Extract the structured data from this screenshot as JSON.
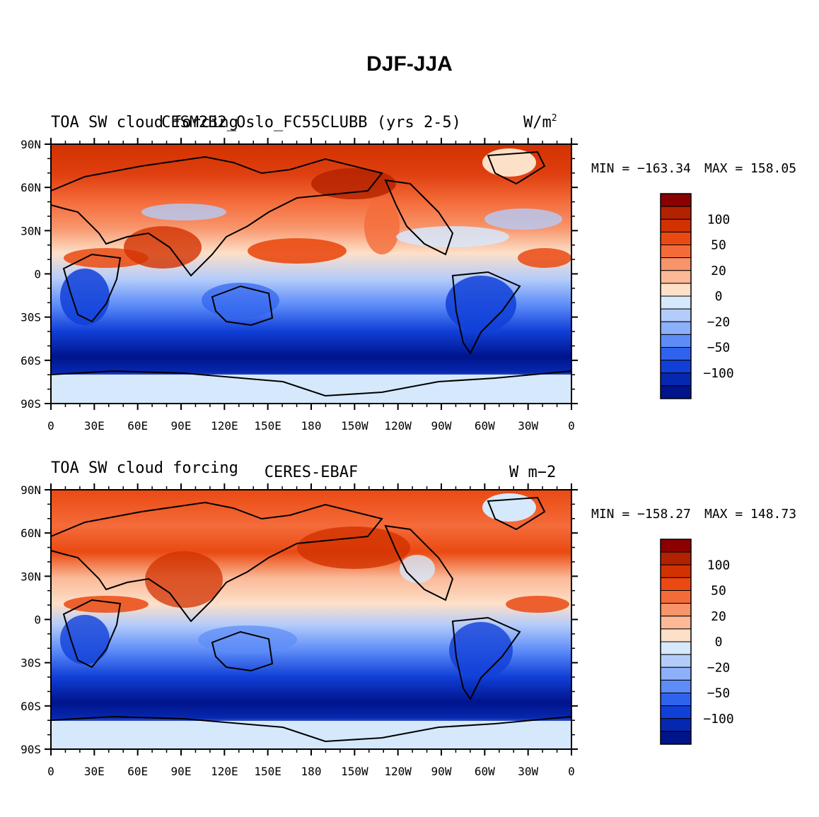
{
  "figure": {
    "title": "DJF-JJA"
  },
  "panels": [
    {
      "left_title": "TOA SW cloud forcing",
      "center_title": "CESM2B2_Oslo_FC55CLUBB (yrs 2-5)",
      "right_title": "W/m",
      "right_title_sup": "2",
      "min_label": "MIN = −163.34",
      "max_label": "MAX = 158.05"
    },
    {
      "left_title": "TOA SW cloud forcing",
      "center_title": "CERES-EBAF",
      "right_title": "W m−2",
      "right_title_sup": "",
      "min_label": "MIN = −158.27",
      "max_label": "MAX = 148.73"
    }
  ],
  "axes": {
    "y_ticks": [
      "90N",
      "60N",
      "30N",
      "0",
      "30S",
      "60S",
      "90S"
    ],
    "x_ticks": [
      "0",
      "30E",
      "60E",
      "90E",
      "120E",
      "150E",
      "180",
      "150W",
      "120W",
      "90W",
      "60W",
      "30W",
      "0"
    ]
  },
  "colorbar": {
    "labels": [
      "100",
      "50",
      "20",
      "0",
      "−20",
      "−50",
      "−100"
    ],
    "colors": [
      "#8b0000",
      "#b22200",
      "#d23200",
      "#ea4a12",
      "#f46b3a",
      "#f8946a",
      "#fbb998",
      "#fde0c8",
      "#d6e8fb",
      "#b4ccfa",
      "#8cb0fa",
      "#5d8cf8",
      "#2f63ee",
      "#1140d8",
      "#0628b0",
      "#00148c"
    ]
  },
  "chart_data": [
    {
      "type": "heatmap",
      "title": "DJF-JJA",
      "variable": "TOA SW cloud forcing",
      "source": "CESM2B2_Oslo_FC55CLUBB (yrs 2-5)",
      "units": "W/m2",
      "min": -163.34,
      "max": 158.05,
      "contour_levels": [
        -140,
        -120,
        -100,
        -80,
        -60,
        -50,
        -40,
        -20,
        -10,
        0,
        10,
        20,
        40,
        50,
        60,
        80,
        100,
        120,
        140
      ]
    },
    {
      "type": "heatmap",
      "title": "DJF-JJA",
      "variable": "TOA SW cloud forcing",
      "source": "CERES-EBAF",
      "units": "W m-2",
      "min": -158.27,
      "max": 148.73,
      "contour_levels": [
        -140,
        -120,
        -100,
        -80,
        -60,
        -50,
        -40,
        -20,
        -10,
        0,
        10,
        20,
        40,
        50,
        60,
        80,
        100,
        120,
        140
      ]
    }
  ]
}
